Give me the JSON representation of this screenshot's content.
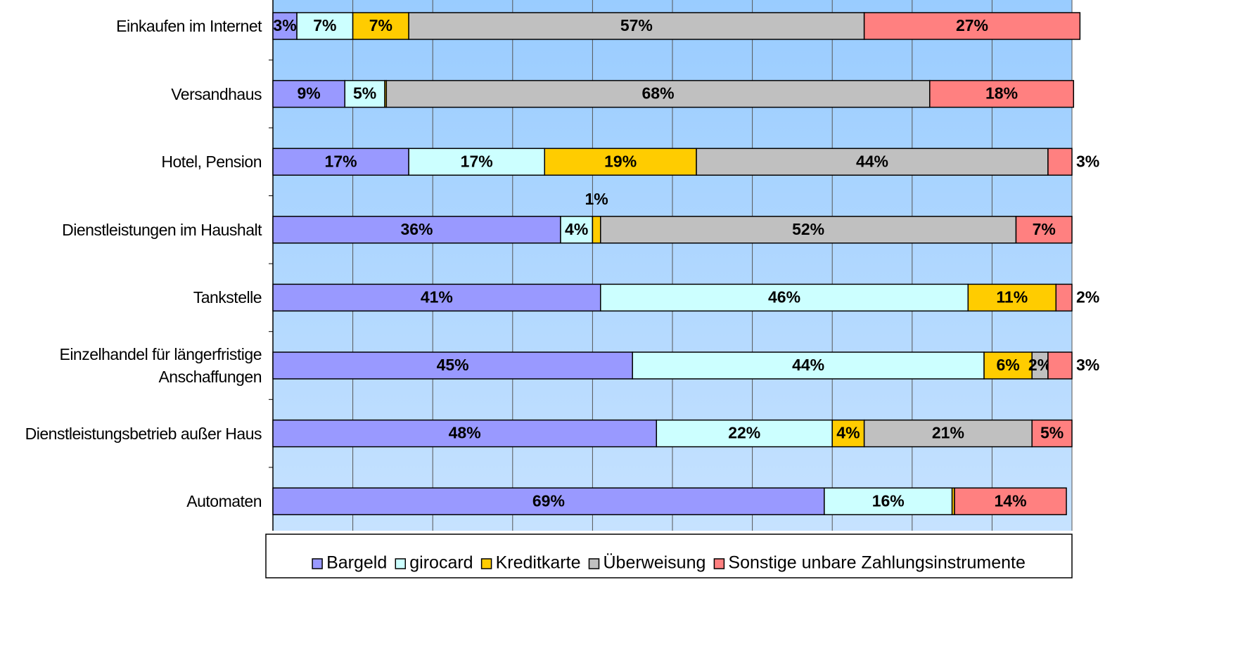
{
  "chart_data": {
    "type": "stacked-bar-horizontal",
    "categories": [
      "Einkaufen im Internet",
      "Versandhaus",
      "Hotel, Pension",
      "Dienstleistungen im Haushalt",
      "Tankstelle",
      "Einzelhandel für längerfristige Anschaffungen",
      "Dienstleistungsbetrieb außer Haus",
      "Automaten"
    ],
    "series": [
      {
        "name": "Bargeld",
        "color": "#9999ff",
        "values": [
          3,
          9,
          17,
          36,
          41,
          45,
          48,
          69
        ],
        "value_labels": [
          "3%",
          "9%",
          "17%",
          "36%",
          "41%",
          "45%",
          "48%",
          "69%"
        ]
      },
      {
        "name": "girocard",
        "color": "#ccffff",
        "values": [
          7,
          5,
          17,
          4,
          46,
          44,
          22,
          16
        ],
        "value_labels": [
          "7%",
          "5%",
          "17%",
          "4%",
          "46%",
          "44%",
          "22%",
          "16%"
        ]
      },
      {
        "name": "Kreditkarte",
        "color": "#ffcc00",
        "values": [
          7,
          0.2,
          19,
          1,
          11,
          6,
          4,
          0.3
        ],
        "value_labels": [
          "7%",
          null,
          "19%",
          "1%",
          "11%",
          "6%",
          "4%",
          null
        ]
      },
      {
        "name": "Überweisung",
        "color": "#c0c0c0",
        "values": [
          57,
          68,
          44,
          52,
          0,
          2,
          21,
          0
        ],
        "value_labels": [
          "57%",
          "68%",
          "44%",
          "52%",
          null,
          "2%",
          "21%",
          null
        ]
      },
      {
        "name": "Sonstige unbare Zahlungsinstrumente",
        "color": "#ff8080",
        "values": [
          27,
          18,
          3,
          7,
          2,
          3,
          5,
          14
        ],
        "value_labels": [
          "27%",
          "18%",
          "3%",
          "7%",
          "2%",
          "3%",
          "5%",
          "14%"
        ]
      }
    ],
    "xlim": [
      0,
      100
    ],
    "xticks": [
      0,
      10,
      20,
      30,
      40,
      50,
      60,
      70,
      80,
      90,
      100
    ],
    "grid": true,
    "legend": "bottom"
  }
}
